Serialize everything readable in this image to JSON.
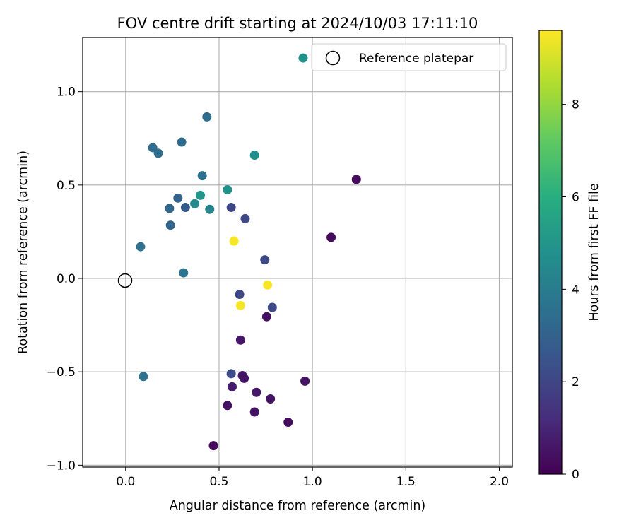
{
  "chart_data": {
    "type": "scatter",
    "title": "FOV centre drift starting at 2024/10/03 17:11:10",
    "xlabel": "Angular distance from reference (arcmin)",
    "ylabel": "Rotation from reference (arcmin)",
    "xlim": [
      -0.23,
      2.07
    ],
    "ylim": [
      -1.01,
      1.29
    ],
    "xticks": [
      0.0,
      0.5,
      1.0,
      1.5,
      2.0
    ],
    "xtick_labels": [
      "0.0",
      "0.5",
      "1.0",
      "1.5",
      "2.0"
    ],
    "yticks": [
      -1.0,
      -0.5,
      0.0,
      0.5,
      1.0
    ],
    "ytick_labels": [
      "−1.0",
      "−0.5",
      "0.0",
      "0.5",
      "1.0"
    ],
    "grid": true,
    "colormap": "viridis",
    "colorbar": {
      "label": "Hours from first FF file",
      "range": [
        0,
        9.6
      ],
      "ticks": [
        0,
        2,
        4,
        6,
        8
      ],
      "tick_labels": [
        "0",
        "2",
        "4",
        "6",
        "8"
      ]
    },
    "legend": {
      "placement": "top-right",
      "entries": [
        {
          "label": "Reference platepar",
          "marker": "open-circle",
          "x": 0.0,
          "y": 0.0
        }
      ]
    },
    "points": [
      {
        "x": 0.95,
        "y": 1.18,
        "hours": 4.8
      },
      {
        "x": 0.435,
        "y": 0.865,
        "hours": 3.4
      },
      {
        "x": 0.145,
        "y": 0.7,
        "hours": 3.4
      },
      {
        "x": 0.175,
        "y": 0.67,
        "hours": 3.4
      },
      {
        "x": 0.3,
        "y": 0.73,
        "hours": 3.4
      },
      {
        "x": 0.69,
        "y": 0.66,
        "hours": 4.7
      },
      {
        "x": 0.41,
        "y": 0.55,
        "hours": 3.6
      },
      {
        "x": 0.545,
        "y": 0.475,
        "hours": 4.8
      },
      {
        "x": 0.4,
        "y": 0.445,
        "hours": 5.0
      },
      {
        "x": 0.37,
        "y": 0.4,
        "hours": 4.5
      },
      {
        "x": 0.45,
        "y": 0.37,
        "hours": 4.3
      },
      {
        "x": 0.28,
        "y": 0.43,
        "hours": 3.0
      },
      {
        "x": 0.235,
        "y": 0.375,
        "hours": 3.2
      },
      {
        "x": 0.32,
        "y": 0.38,
        "hours": 2.7
      },
      {
        "x": 0.565,
        "y": 0.38,
        "hours": 2.0
      },
      {
        "x": 0.64,
        "y": 0.32,
        "hours": 2.1
      },
      {
        "x": 0.24,
        "y": 0.285,
        "hours": 3.1
      },
      {
        "x": 0.08,
        "y": 0.17,
        "hours": 3.6
      },
      {
        "x": 0.58,
        "y": 0.2,
        "hours": 9.5
      },
      {
        "x": 0.745,
        "y": 0.1,
        "hours": 2.1
      },
      {
        "x": 0.31,
        "y": 0.03,
        "hours": 3.7
      },
      {
        "x": 0.76,
        "y": -0.035,
        "hours": 9.5
      },
      {
        "x": 0.61,
        "y": -0.085,
        "hours": 2.0
      },
      {
        "x": 0.615,
        "y": -0.145,
        "hours": 9.5
      },
      {
        "x": 0.785,
        "y": -0.155,
        "hours": 2.1
      },
      {
        "x": 0.755,
        "y": -0.205,
        "hours": 0.4
      },
      {
        "x": 0.615,
        "y": -0.33,
        "hours": 0.6
      },
      {
        "x": 0.565,
        "y": -0.51,
        "hours": 2.2
      },
      {
        "x": 0.625,
        "y": -0.52,
        "hours": 0.6
      },
      {
        "x": 0.635,
        "y": -0.535,
        "hours": 0.5
      },
      {
        "x": 0.57,
        "y": -0.58,
        "hours": 0.7
      },
      {
        "x": 0.095,
        "y": -0.525,
        "hours": 3.6
      },
      {
        "x": 0.7,
        "y": -0.61,
        "hours": 0.6
      },
      {
        "x": 0.775,
        "y": -0.645,
        "hours": 0.5
      },
      {
        "x": 0.96,
        "y": -0.55,
        "hours": 0.5
      },
      {
        "x": 0.545,
        "y": -0.68,
        "hours": 0.4
      },
      {
        "x": 0.69,
        "y": -0.715,
        "hours": 0.5
      },
      {
        "x": 0.87,
        "y": -0.77,
        "hours": 0.3
      },
      {
        "x": 0.47,
        "y": -0.895,
        "hours": 0.3
      },
      {
        "x": 1.1,
        "y": 0.22,
        "hours": 0.3
      },
      {
        "x": 1.235,
        "y": 0.53,
        "hours": 0.3
      }
    ]
  }
}
